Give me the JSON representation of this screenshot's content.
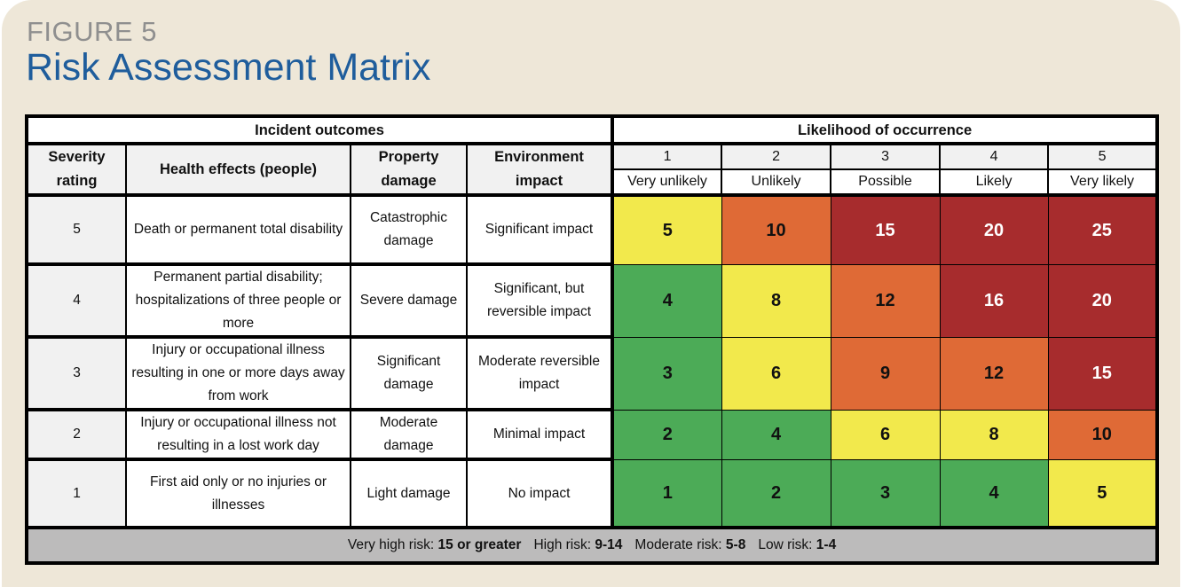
{
  "figure_label": "FIGURE 5",
  "title": "Risk Assessment Matrix",
  "colors": {
    "low": "#4cab57",
    "moderate": "#f2e94c",
    "high": "#df6a36",
    "very_high": "#a72c2d",
    "title": "#1f5d9c"
  },
  "headers": {
    "incident_outcomes": "Incident outcomes",
    "likelihood": "Likelihood of occurrence",
    "severity": "Severity rating",
    "health": "Health effects (people)",
    "property": "Property damage",
    "environment": "Environment impact"
  },
  "likelihood_levels": [
    {
      "num": "1",
      "label": "Very unlikely"
    },
    {
      "num": "2",
      "label": "Unlikely"
    },
    {
      "num": "3",
      "label": "Possible"
    },
    {
      "num": "4",
      "label": "Likely"
    },
    {
      "num": "5",
      "label": "Very likely"
    }
  ],
  "rows": [
    {
      "severity": "5",
      "health": "Death or permanent total disability",
      "property": "Catastrophic damage",
      "environment": "Significant impact",
      "scores": [
        "5",
        "10",
        "15",
        "20",
        "25"
      ]
    },
    {
      "severity": "4",
      "health": "Permanent partial disability; hospitalizations of three people or more",
      "property": "Severe damage",
      "environment": "Significant, but reversible impact",
      "scores": [
        "4",
        "8",
        "12",
        "16",
        "20"
      ]
    },
    {
      "severity": "3",
      "health": "Injury or occupational illness resulting in one or more days away from work",
      "property": "Significant damage",
      "environment": "Moderate reversible impact",
      "scores": [
        "3",
        "6",
        "9",
        "12",
        "15"
      ]
    },
    {
      "severity": "2",
      "health": "Injury or occupational illness not resulting in a lost work day",
      "property": "Moderate damage",
      "environment": "Minimal impact",
      "scores": [
        "2",
        "4",
        "6",
        "8",
        "10"
      ]
    },
    {
      "severity": "1",
      "health": "First aid only or no injuries or illnesses",
      "property": "Light damage",
      "environment": "No impact",
      "scores": [
        "1",
        "2",
        "3",
        "4",
        "5"
      ]
    }
  ],
  "legend": [
    {
      "label": "Very high risk:",
      "range": "15 or greater"
    },
    {
      "label": "High risk:",
      "range": "9-14"
    },
    {
      "label": "Moderate risk:",
      "range": "5-8"
    },
    {
      "label": "Low risk:",
      "range": "1-4"
    }
  ]
}
